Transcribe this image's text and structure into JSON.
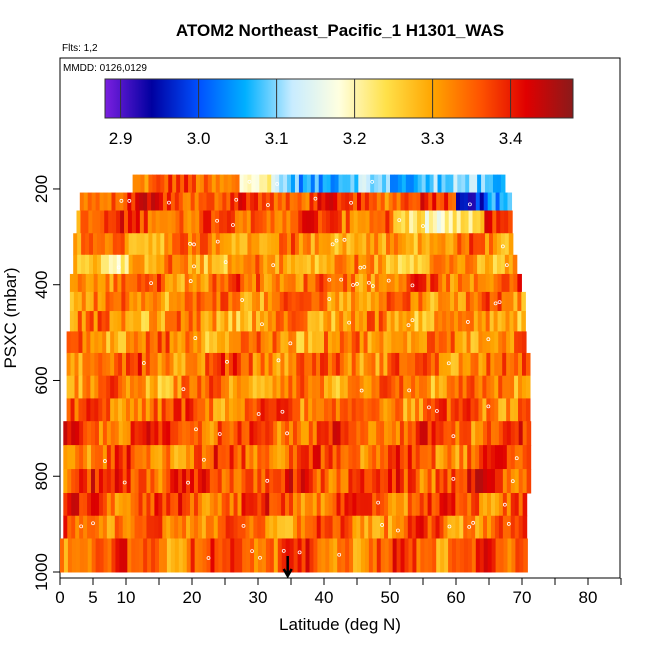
{
  "chart_data": {
    "type": "heatmap",
    "title": "ATOM2 Northeast_Pacific_1 H1301_WAS",
    "annotations": [
      "Flts: 1,2",
      "MMDD: 0126,0129"
    ],
    "xlabel": "Latitude (deg N)",
    "ylabel": "PSXC (mbar)",
    "xlim": [
      0,
      85
    ],
    "ylim": [
      1000,
      120
    ],
    "x_ticks": [
      0,
      5,
      10,
      20,
      30,
      40,
      50,
      60,
      70,
      80
    ],
    "x_minor_ticks": [
      15,
      25,
      35,
      45,
      55,
      65,
      75,
      85
    ],
    "y_ticks": [
      200,
      400,
      600,
      800,
      1000
    ],
    "colorbar": {
      "range": [
        2.88,
        3.48
      ],
      "ticks": [
        2.9,
        3.0,
        3.1,
        3.2,
        3.3,
        3.4
      ],
      "tick_labels": [
        "2.9",
        "3.0",
        "3.1",
        "3.2",
        "3.3",
        "3.4"
      ],
      "colors": [
        "#7b1fe0",
        "#0000a0",
        "#0050ff",
        "#00b0ff",
        "#c8ecff",
        "#ffffe0",
        "#ffe14a",
        "#ffa500",
        "#ff5500",
        "#e00000",
        "#8b1a1a"
      ]
    },
    "arrow_latitude": 34.5,
    "rows": [
      {
        "p": 195,
        "x0": 11,
        "x1": 67,
        "v": 3.34,
        "segments": [
          [
            27,
            32,
            3.2
          ],
          [
            32,
            67,
            3.08
          ]
        ]
      },
      {
        "p": 220,
        "x0": 3,
        "x1": 68,
        "v": 3.37,
        "segments": [
          [
            60,
            64,
            3.0
          ],
          [
            64,
            68,
            3.05
          ]
        ]
      },
      {
        "p": 270,
        "x0": 2.5,
        "x1": 68.5,
        "v": 3.36,
        "segments": [
          [
            50,
            58,
            3.2
          ],
          [
            58,
            64,
            3.24
          ]
        ]
      },
      {
        "p": 315,
        "x0": 2,
        "x1": 68.5,
        "v": 3.32,
        "segments": [
          [
            44,
            50,
            3.28
          ]
        ]
      },
      {
        "p": 360,
        "x0": 2,
        "x1": 69,
        "v": 3.3,
        "segments": [
          [
            2,
            10,
            3.26
          ]
        ]
      },
      {
        "p": 395,
        "x0": 1.5,
        "x1": 69.5,
        "v": 3.34,
        "segments": []
      },
      {
        "p": 435,
        "x0": 1.5,
        "x1": 70,
        "v": 3.33,
        "segments": []
      },
      {
        "p": 475,
        "x0": 1.5,
        "x1": 70.5,
        "v": 3.31,
        "segments": []
      },
      {
        "p": 520,
        "x0": 1,
        "x1": 70.5,
        "v": 3.32,
        "segments": []
      },
      {
        "p": 565,
        "x0": 1,
        "x1": 71,
        "v": 3.34,
        "segments": []
      },
      {
        "p": 615,
        "x0": 1,
        "x1": 71,
        "v": 3.32,
        "segments": []
      },
      {
        "p": 660,
        "x0": 1,
        "x1": 71,
        "v": 3.34,
        "segments": []
      },
      {
        "p": 710,
        "x0": 0.5,
        "x1": 71,
        "v": 3.36,
        "segments": []
      },
      {
        "p": 760,
        "x0": 0.5,
        "x1": 71,
        "v": 3.35,
        "segments": []
      },
      {
        "p": 810,
        "x0": 0.5,
        "x1": 71,
        "v": 3.37,
        "segments": []
      },
      {
        "p": 860,
        "x0": 0.5,
        "x1": 70.5,
        "v": 3.36,
        "segments": []
      },
      {
        "p": 905,
        "x0": 0.5,
        "x1": 70.5,
        "v": 3.34,
        "segments": []
      },
      {
        "p": 955,
        "x0": 0,
        "x1": 70.5,
        "v": 3.35,
        "segments": []
      }
    ]
  }
}
